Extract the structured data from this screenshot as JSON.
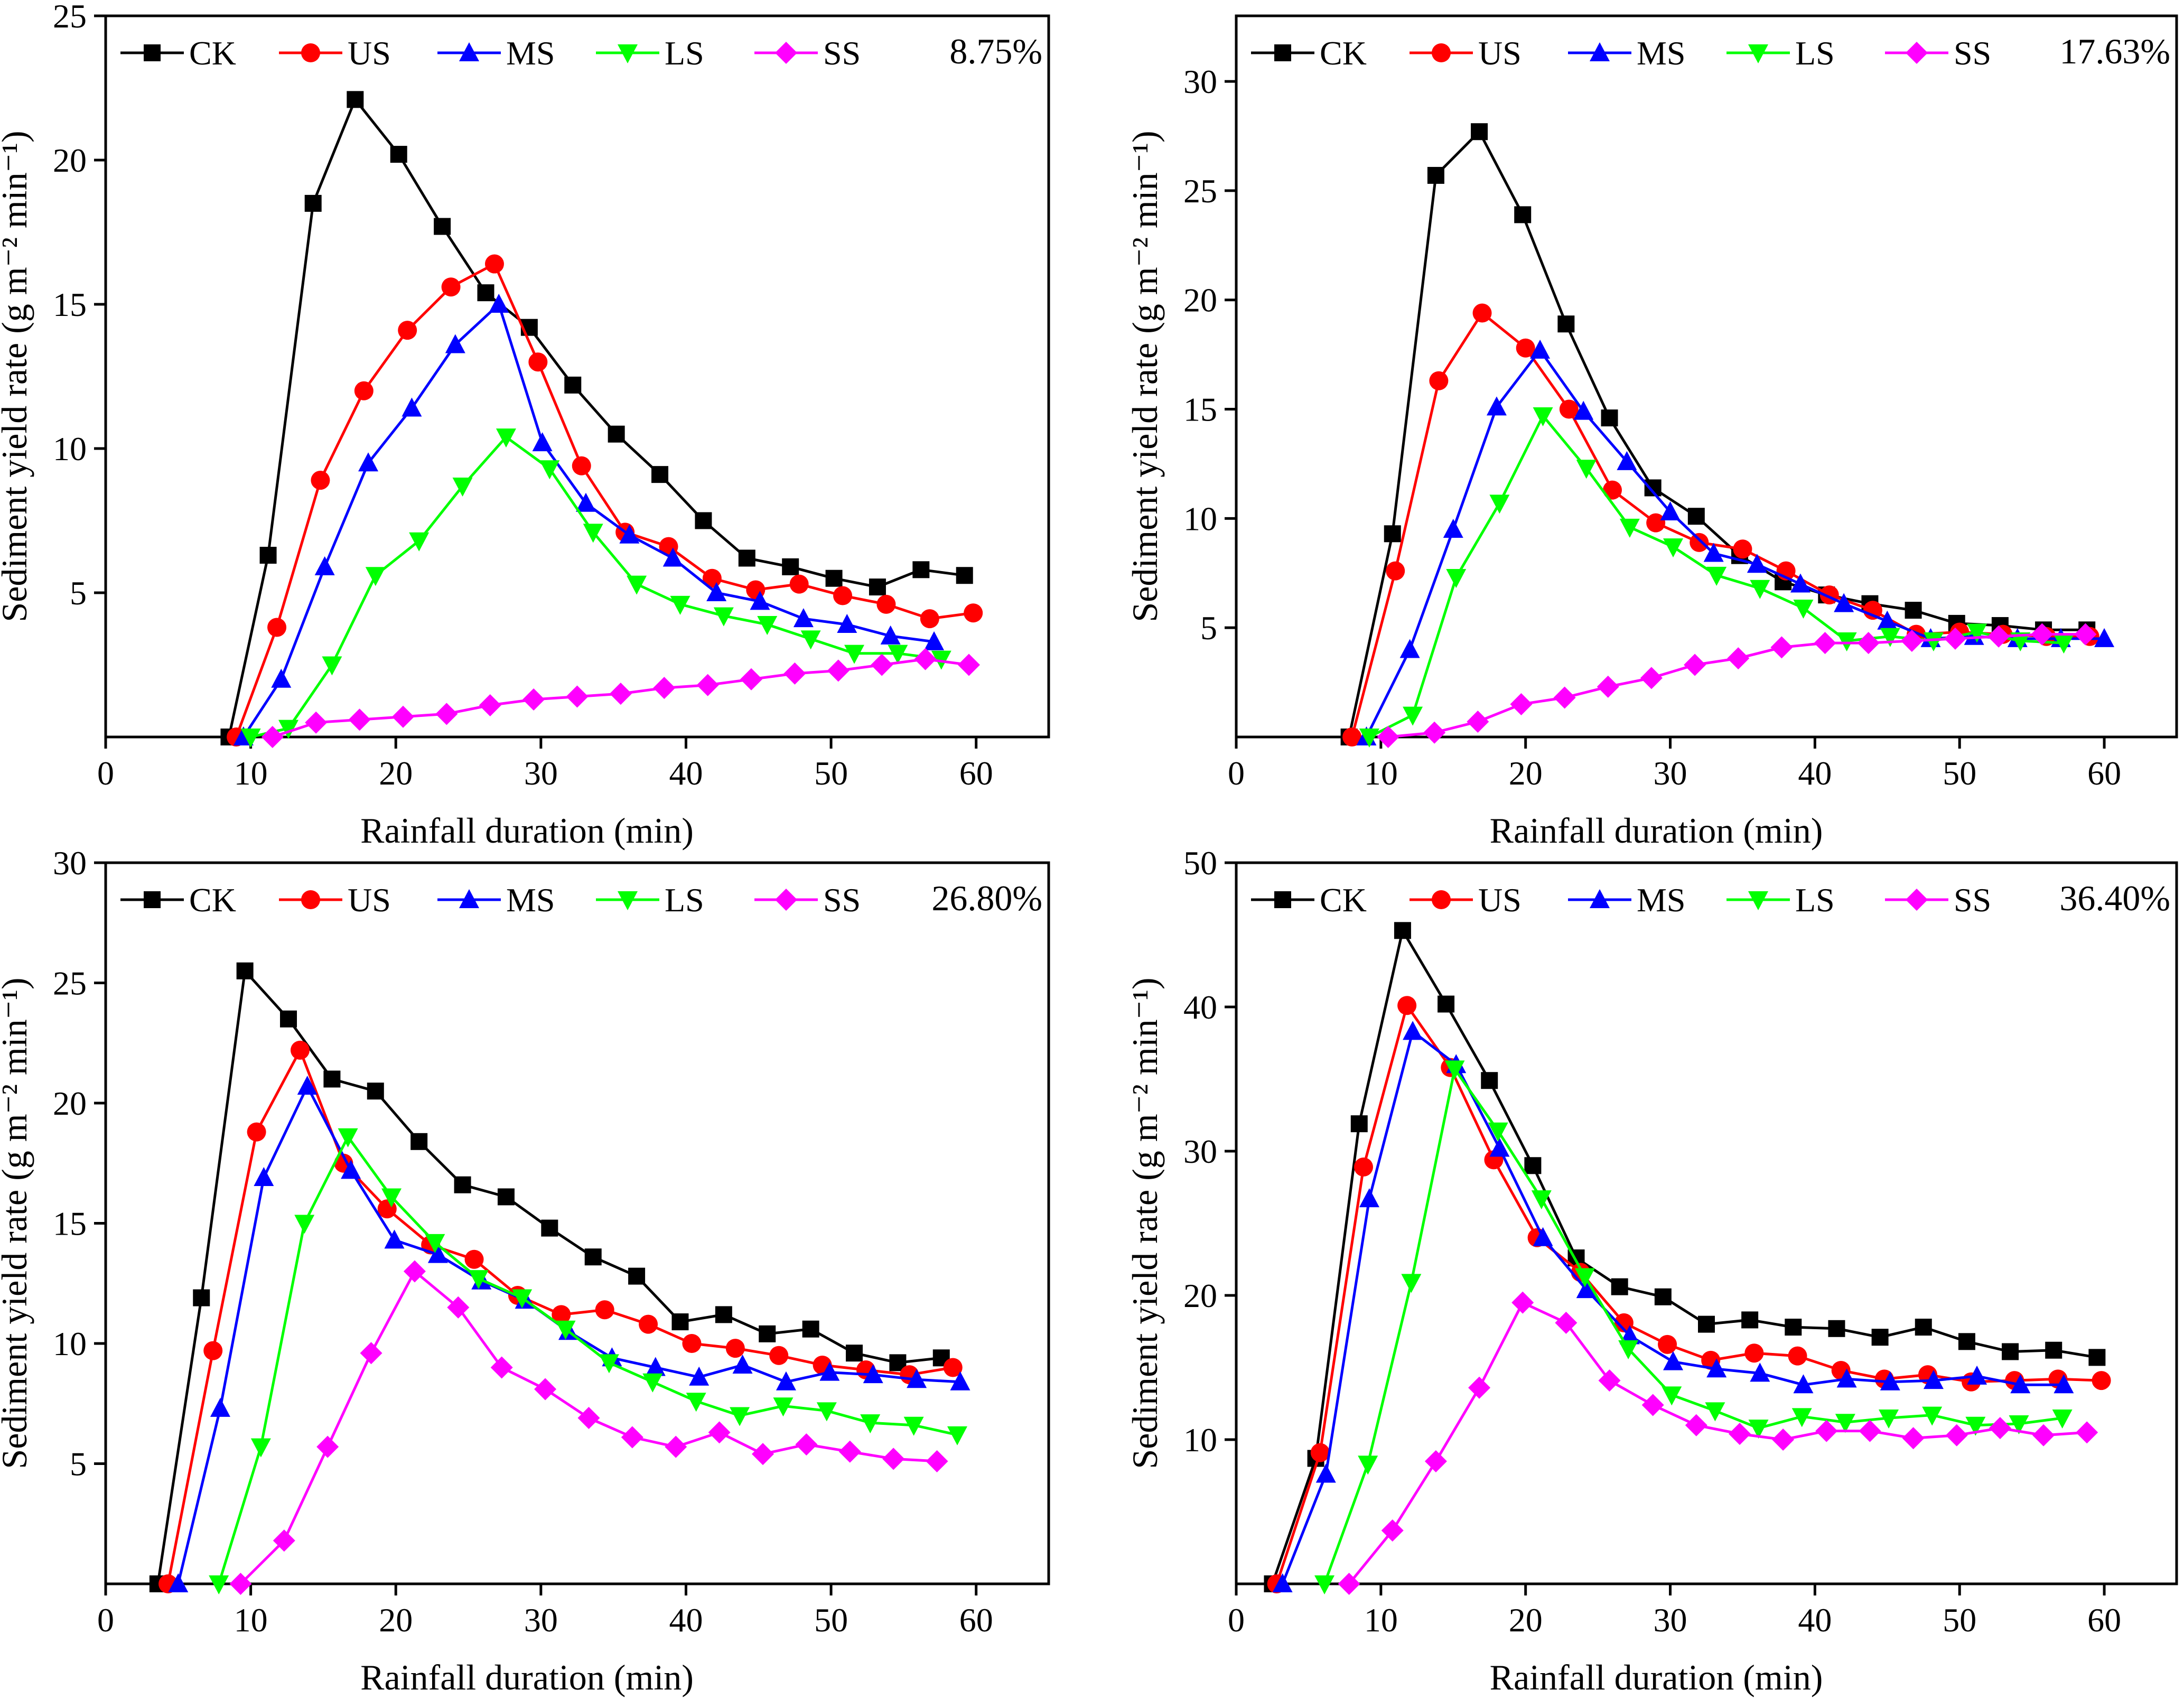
{
  "chart_data": [
    {
      "type": "line",
      "annotation": "8.75%",
      "xlabel": "Rainfall duration (min)",
      "ylabel": "Sediment yield rate (g m⁻² min⁻¹)",
      "xlim": [
        0,
        65
      ],
      "ylim": [
        0,
        25
      ],
      "xticks": [
        0,
        10,
        20,
        30,
        40,
        50,
        60
      ],
      "yticks": [
        5,
        10,
        15,
        20,
        25
      ],
      "series": [
        {
          "name": "CK",
          "color": "#000000",
          "marker": "square",
          "x": [
            8.5,
            11.2,
            14.3,
            17.2,
            20.2,
            23.2,
            26.2,
            29.2,
            32.2,
            35.2,
            38.2,
            41.2,
            44.2,
            47.2,
            50.2,
            53.2,
            56.2,
            59.2
          ],
          "y": [
            0,
            6.3,
            18.5,
            22.1,
            20.2,
            17.7,
            15.4,
            14.2,
            12.2,
            10.5,
            9.1,
            7.5,
            6.2,
            5.9,
            5.5,
            5.2,
            5.8,
            5.6
          ]
        },
        {
          "name": "US",
          "color": "#ff0000",
          "marker": "circle",
          "x": [
            9.0,
            11.8,
            14.8,
            17.8,
            20.8,
            23.8,
            26.8,
            29.8,
            32.8,
            35.8,
            38.8,
            41.8,
            44.8,
            47.8,
            50.8,
            53.8,
            56.8,
            59.8
          ],
          "y": [
            0,
            3.8,
            8.9,
            12.0,
            14.1,
            15.6,
            16.4,
            13.0,
            9.4,
            7.1,
            6.6,
            5.5,
            5.1,
            5.3,
            4.9,
            4.6,
            4.1,
            4.3
          ]
        },
        {
          "name": "MS",
          "color": "#0000ff",
          "marker": "triangle-up",
          "x": [
            9.5,
            12.1,
            15.1,
            18.1,
            21.1,
            24.1,
            27.1,
            30.1,
            33.1,
            36.1,
            39.1,
            42.1,
            45.1,
            48.1,
            51.1,
            54.1,
            57.1
          ],
          "y": [
            0,
            2.0,
            5.9,
            9.5,
            11.4,
            13.6,
            15.0,
            10.2,
            8.1,
            7.0,
            6.2,
            5.0,
            4.7,
            4.1,
            3.9,
            3.5,
            3.3
          ]
        },
        {
          "name": "LS",
          "color": "#00ff00",
          "marker": "triangle-down",
          "x": [
            10.0,
            12.6,
            15.6,
            18.6,
            21.6,
            24.6,
            27.6,
            30.6,
            33.6,
            36.6,
            39.6,
            42.6,
            45.6,
            48.6,
            51.6,
            54.6,
            57.6
          ],
          "y": [
            0,
            0.3,
            2.5,
            5.6,
            6.8,
            8.7,
            10.4,
            9.3,
            7.1,
            5.3,
            4.6,
            4.2,
            3.9,
            3.4,
            2.9,
            2.9,
            2.7
          ]
        },
        {
          "name": "SS",
          "color": "#ff00ff",
          "marker": "diamond",
          "x": [
            11.5,
            14.5,
            17.5,
            20.5,
            23.5,
            26.5,
            29.5,
            32.5,
            35.5,
            38.5,
            41.5,
            44.5,
            47.5,
            50.5,
            53.5,
            56.5,
            59.5
          ],
          "y": [
            0,
            0.5,
            0.6,
            0.7,
            0.8,
            1.1,
            1.3,
            1.4,
            1.5,
            1.7,
            1.8,
            2.0,
            2.2,
            2.3,
            2.5,
            2.7,
            2.5
          ]
        }
      ]
    },
    {
      "type": "line",
      "annotation": "17.63%",
      "xlabel": "Rainfall duration (min)",
      "ylabel": "Sediment yield rate (g m⁻² min⁻¹)",
      "xlim": [
        0,
        65
      ],
      "ylim": [
        0,
        33
      ],
      "xticks": [
        0,
        10,
        20,
        30,
        40,
        50,
        60
      ],
      "yticks": [
        5,
        10,
        15,
        20,
        25,
        30
      ],
      "series": [
        {
          "name": "CK",
          "color": "#000000",
          "marker": "square",
          "x": [
            7.8,
            10.8,
            13.8,
            16.8,
            19.8,
            22.8,
            25.8,
            28.8,
            31.8,
            34.8,
            37.8,
            40.8,
            43.8,
            46.8,
            49.8,
            52.8,
            55.8,
            58.8
          ],
          "y": [
            0,
            9.3,
            25.7,
            27.7,
            23.9,
            18.9,
            14.6,
            11.4,
            10.1,
            8.3,
            7.1,
            6.5,
            6.1,
            5.8,
            5.2,
            5.1,
            4.9,
            4.9
          ]
        },
        {
          "name": "US",
          "color": "#ff0000",
          "marker": "circle",
          "x": [
            8.0,
            11.0,
            14.0,
            17.0,
            20.0,
            23.0,
            26.0,
            29.0,
            32.0,
            35.0,
            38.0,
            41.0,
            44.0,
            47.0,
            50.0,
            53.0,
            56.0,
            59.0
          ],
          "y": [
            0,
            7.6,
            16.3,
            19.4,
            17.8,
            15.0,
            11.3,
            9.8,
            8.9,
            8.6,
            7.6,
            6.5,
            5.8,
            4.7,
            4.8,
            4.7,
            4.6,
            4.6
          ]
        },
        {
          "name": "MS",
          "color": "#0000ff",
          "marker": "triangle-up",
          "x": [
            9.0,
            12.0,
            15.0,
            18.0,
            21.0,
            24.0,
            27.0,
            30.0,
            33.0,
            36.0,
            39.0,
            42.0,
            45.0,
            48.0,
            51.0,
            54.0,
            57.0,
            60.0
          ],
          "y": [
            0,
            4.0,
            9.5,
            15.1,
            17.7,
            14.9,
            12.6,
            10.3,
            8.4,
            7.9,
            7.0,
            6.1,
            5.3,
            4.5,
            4.6,
            4.5,
            4.5,
            4.5
          ]
        },
        {
          "name": "LS",
          "color": "#00ff00",
          "marker": "triangle-down",
          "x": [
            9.2,
            12.2,
            15.2,
            18.2,
            21.2,
            24.2,
            27.2,
            30.2,
            33.2,
            36.2,
            39.2,
            42.2,
            45.2,
            48.2,
            51.2,
            54.2,
            57.2
          ],
          "y": [
            0,
            1.0,
            7.3,
            10.7,
            14.7,
            12.3,
            9.6,
            8.7,
            7.4,
            6.8,
            5.9,
            4.4,
            4.6,
            4.4,
            4.8,
            4.4,
            4.3
          ]
        },
        {
          "name": "SS",
          "color": "#ff00ff",
          "marker": "diamond",
          "x": [
            10.5,
            13.7,
            16.7,
            19.7,
            22.7,
            25.7,
            28.7,
            31.7,
            34.7,
            37.7,
            40.7,
            43.7,
            46.7,
            49.7,
            52.7,
            55.7,
            58.7
          ],
          "y": [
            0,
            0.2,
            0.7,
            1.5,
            1.8,
            2.3,
            2.7,
            3.3,
            3.6,
            4.1,
            4.3,
            4.3,
            4.4,
            4.5,
            4.6,
            4.7,
            4.7
          ]
        }
      ]
    },
    {
      "type": "line",
      "annotation": "26.80%",
      "xlabel": "Rainfall duration (min)",
      "ylabel": "Sediment yield rate (g m⁻² min⁻¹)",
      "xlim": [
        0,
        65
      ],
      "ylim": [
        0,
        30
      ],
      "xticks": [
        0,
        10,
        20,
        30,
        40,
        50,
        60
      ],
      "yticks": [
        5,
        10,
        15,
        20,
        25,
        30
      ],
      "series": [
        {
          "name": "CK",
          "color": "#000000",
          "marker": "square",
          "x": [
            3.6,
            6.6,
            9.6,
            12.6,
            15.6,
            18.6,
            21.6,
            24.6,
            27.6,
            30.6,
            33.6,
            36.6,
            39.6,
            42.6,
            45.6,
            48.6,
            51.6,
            54.6,
            57.6
          ],
          "y": [
            0,
            11.9,
            25.5,
            23.5,
            21.0,
            20.5,
            18.4,
            16.6,
            16.1,
            14.8,
            13.6,
            12.8,
            10.9,
            11.2,
            10.4,
            10.6,
            9.6,
            9.2,
            9.4
          ]
        },
        {
          "name": "US",
          "color": "#ff0000",
          "marker": "circle",
          "x": [
            4.3,
            7.4,
            10.4,
            13.4,
            16.4,
            19.4,
            22.4,
            25.4,
            28.4,
            31.4,
            34.4,
            37.4,
            40.4,
            43.4,
            46.4,
            49.4,
            52.4,
            55.4,
            58.4
          ],
          "y": [
            0,
            9.7,
            18.8,
            22.2,
            17.5,
            15.6,
            14.1,
            13.5,
            12.0,
            11.2,
            11.4,
            10.8,
            10.0,
            9.8,
            9.5,
            9.1,
            8.9,
            8.7,
            9.0
          ]
        },
        {
          "name": "MS",
          "color": "#0000ff",
          "marker": "triangle-up",
          "x": [
            5.0,
            7.9,
            10.9,
            13.9,
            16.9,
            19.9,
            22.9,
            25.9,
            28.9,
            31.9,
            34.9,
            37.9,
            40.9,
            43.9,
            46.9,
            49.9,
            52.9,
            55.9,
            58.9
          ],
          "y": [
            0,
            7.3,
            16.9,
            20.7,
            17.2,
            14.3,
            13.7,
            12.6,
            11.8,
            10.5,
            9.4,
            9.0,
            8.6,
            9.1,
            8.4,
            8.8,
            8.7,
            8.5,
            8.4
          ]
        },
        {
          "name": "LS",
          "color": "#00ff00",
          "marker": "triangle-down",
          "x": [
            7.8,
            10.7,
            13.7,
            16.7,
            19.7,
            22.7,
            25.7,
            28.7,
            31.7,
            34.7,
            37.7,
            40.7,
            43.7,
            46.7,
            49.7,
            52.7,
            55.7,
            58.7
          ],
          "y": [
            0,
            5.7,
            15.0,
            18.6,
            16.1,
            14.2,
            12.7,
            11.9,
            10.6,
            9.2,
            8.4,
            7.6,
            7.0,
            7.4,
            7.2,
            6.7,
            6.6,
            6.2
          ]
        },
        {
          "name": "SS",
          "color": "#ff00ff",
          "marker": "diamond",
          "x": [
            9.3,
            12.3,
            15.3,
            18.3,
            21.3,
            24.3,
            27.3,
            30.3,
            33.3,
            36.3,
            39.3,
            42.3,
            45.3,
            48.3,
            51.3,
            54.3,
            57.3
          ],
          "y": [
            0,
            1.8,
            5.7,
            9.6,
            13.0,
            11.5,
            9.0,
            8.1,
            6.9,
            6.1,
            5.7,
            6.3,
            5.4,
            5.8,
            5.5,
            5.2,
            5.1
          ]
        }
      ]
    },
    {
      "type": "line",
      "annotation": "36.40%",
      "xlabel": "Rainfall duration (min)",
      "ylabel": "Sediment yield rate (g m⁻² min⁻¹)",
      "xlim": [
        0,
        65
      ],
      "ylim": [
        0,
        50
      ],
      "xticks": [
        0,
        10,
        20,
        30,
        40,
        50,
        60
      ],
      "yticks": [
        10,
        20,
        30,
        40,
        50
      ],
      "series": [
        {
          "name": "CK",
          "color": "#000000",
          "marker": "square",
          "x": [
            2.5,
            5.5,
            8.5,
            11.5,
            14.5,
            17.5,
            20.5,
            23.5,
            26.5,
            29.5,
            32.5,
            35.5,
            38.5,
            41.5,
            44.5,
            47.5,
            50.5,
            53.5,
            56.5,
            59.5
          ],
          "y": [
            0,
            8.7,
            31.9,
            45.3,
            40.2,
            34.9,
            29.0,
            22.6,
            20.6,
            19.9,
            18.0,
            18.3,
            17.8,
            17.7,
            17.1,
            17.8,
            16.8,
            16.1,
            16.2,
            15.7
          ]
        },
        {
          "name": "US",
          "color": "#ff0000",
          "marker": "circle",
          "x": [
            2.8,
            5.8,
            8.8,
            11.8,
            14.8,
            17.8,
            20.8,
            23.8,
            26.8,
            29.8,
            32.8,
            35.8,
            38.8,
            41.8,
            44.8,
            47.8,
            50.8,
            53.8,
            56.8,
            59.8
          ],
          "y": [
            0,
            9.1,
            28.9,
            40.1,
            35.8,
            29.4,
            24.0,
            21.6,
            18.1,
            16.6,
            15.5,
            16.0,
            15.8,
            14.8,
            14.2,
            14.5,
            14.0,
            14.1,
            14.2,
            14.1
          ]
        },
        {
          "name": "MS",
          "color": "#0000ff",
          "marker": "triangle-up",
          "x": [
            3.2,
            6.2,
            9.2,
            12.2,
            15.2,
            18.2,
            21.2,
            24.2,
            27.2,
            30.2,
            33.2,
            36.2,
            39.2,
            42.2,
            45.2,
            48.2,
            51.2,
            54.2,
            57.2
          ],
          "y": [
            0,
            7.6,
            26.7,
            38.3,
            36.0,
            30.2,
            24.0,
            20.4,
            17.2,
            15.4,
            14.9,
            14.6,
            13.8,
            14.2,
            14.0,
            14.1,
            14.4,
            13.8,
            13.8
          ]
        },
        {
          "name": "LS",
          "color": "#00ff00",
          "marker": "triangle-down",
          "x": [
            6.1,
            9.1,
            12.1,
            15.1,
            18.1,
            21.1,
            24.1,
            27.1,
            30.1,
            33.1,
            36.1,
            39.1,
            42.1,
            45.1,
            48.1,
            51.1,
            54.1,
            57.1
          ],
          "y": [
            0,
            8.3,
            20.9,
            35.7,
            31.4,
            26.7,
            21.3,
            16.3,
            13.1,
            12.0,
            10.8,
            11.6,
            11.2,
            11.5,
            11.7,
            11.0,
            11.1,
            11.5
          ]
        },
        {
          "name": "SS",
          "color": "#ff00ff",
          "marker": "diamond",
          "x": [
            7.8,
            10.8,
            13.8,
            16.8,
            19.8,
            22.8,
            25.8,
            28.8,
            31.8,
            34.8,
            37.8,
            40.8,
            43.8,
            46.8,
            49.8,
            52.8,
            55.8,
            58.8
          ],
          "y": [
            0,
            3.7,
            8.5,
            13.6,
            19.5,
            18.1,
            14.1,
            12.4,
            11.0,
            10.4,
            10.0,
            10.6,
            10.6,
            10.1,
            10.3,
            10.8,
            10.3,
            10.5
          ]
        }
      ]
    }
  ]
}
